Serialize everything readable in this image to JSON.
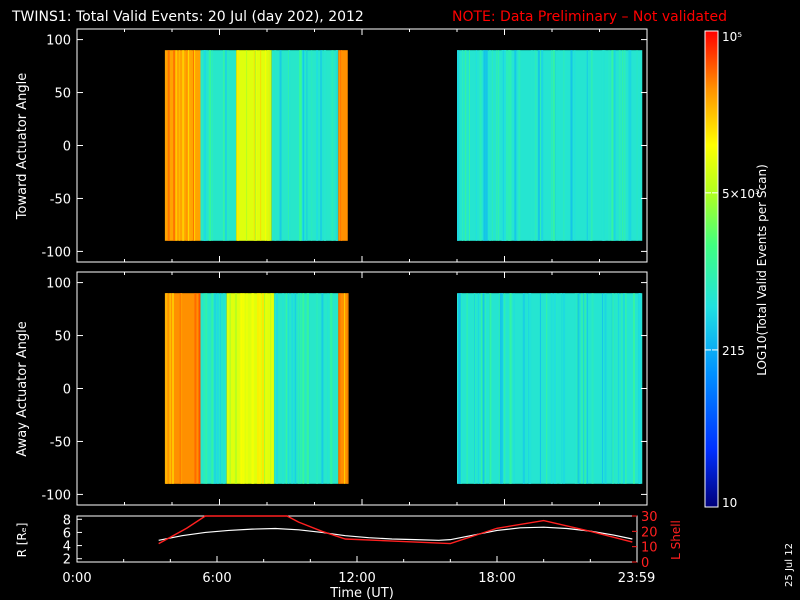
{
  "title": "TWINS1: Total Valid Events: 20 Jul (day 202), 2012",
  "note": "NOTE: Data Preliminary – Not validated",
  "date_stamp": "25 Jul 12",
  "colors": {
    "background": "#000000",
    "axes": "#ffffff",
    "note": "#ff0000",
    "l_shell": "#ff2020",
    "r_line": "#ffffff"
  },
  "chart_data": [
    {
      "type": "heatmap",
      "ylabel": "Toward Actuator Angle",
      "ylim": [
        -110,
        110
      ],
      "yticks": [
        -100,
        -50,
        0,
        50,
        100
      ],
      "xlim_hours": [
        0,
        24
      ],
      "data_windows_hours": [
        [
          3.7,
          11.4
        ],
        [
          16.0,
          23.8
        ]
      ],
      "angle_range": [
        -90,
        90
      ],
      "colorbar": "log10 counts: 10 (dark blue) to 1e5 (red)",
      "bands": [
        {
          "from": 3.7,
          "to": 5.2,
          "level": 0.86
        },
        {
          "from": 5.2,
          "to": 6.7,
          "level": 0.45
        },
        {
          "from": 6.7,
          "to": 8.2,
          "level": 0.72
        },
        {
          "from": 8.2,
          "to": 11.0,
          "level": 0.45
        },
        {
          "from": 11.0,
          "to": 11.4,
          "level": 0.88
        },
        {
          "from": 16.0,
          "to": 23.8,
          "level": 0.44
        }
      ]
    },
    {
      "type": "heatmap",
      "ylabel": "Away Actuator Angle",
      "ylim": [
        -110,
        110
      ],
      "yticks": [
        -100,
        -50,
        0,
        50,
        100
      ],
      "xlim_hours": [
        0,
        24
      ],
      "data_windows_hours": [
        [
          3.7,
          11.4
        ],
        [
          16.0,
          23.8
        ]
      ],
      "angle_range": [
        -90,
        90
      ],
      "bands": [
        {
          "from": 3.7,
          "to": 5.2,
          "level": 0.88
        },
        {
          "from": 5.2,
          "to": 6.3,
          "level": 0.45
        },
        {
          "from": 6.3,
          "to": 8.3,
          "level": 0.72
        },
        {
          "from": 8.3,
          "to": 11.0,
          "level": 0.45
        },
        {
          "from": 11.0,
          "to": 11.4,
          "level": 0.88
        },
        {
          "from": 16.0,
          "to": 23.8,
          "level": 0.44
        }
      ]
    },
    {
      "type": "line",
      "ylabel": "R [Rₑ]",
      "ylim_left": [
        1.5,
        8.5
      ],
      "yticks_left": [
        2,
        4,
        6,
        8
      ],
      "ylabel_right": "L Shell",
      "ylim_right": [
        0,
        30
      ],
      "yticks_right": [
        0,
        10,
        20,
        30
      ],
      "xlabel": "Time (UT)",
      "xticks": [
        "0:00",
        "6:00",
        "12:00",
        "18:00",
        "23:59"
      ],
      "xtick_hours": [
        0,
        6,
        12,
        18,
        23.98
      ],
      "series": [
        {
          "name": "R",
          "x_hours": [
            3.5,
            4.5,
            5.5,
            6.5,
            7.5,
            8.5,
            9.5,
            10.5,
            11.5,
            12.5,
            13.5,
            14.5,
            15.5,
            16.0,
            17.0,
            18.0,
            19.0,
            20.0,
            21.0,
            22.0,
            23.0,
            23.8
          ],
          "values": [
            4.8,
            5.5,
            6.0,
            6.3,
            6.5,
            6.6,
            6.4,
            6.0,
            5.5,
            5.2,
            5.0,
            4.9,
            4.8,
            4.9,
            5.6,
            6.3,
            6.7,
            6.8,
            6.6,
            6.2,
            5.6,
            5.0
          ]
        },
        {
          "name": "L Shell",
          "x_hours": [
            3.5,
            4.7,
            5.5,
            9.0,
            9.5,
            10.5,
            11.5,
            16.0,
            18.0,
            20.0,
            22.0,
            23.8
          ],
          "values": [
            12,
            22,
            30,
            30,
            26,
            20,
            15,
            12,
            22,
            27,
            20,
            13
          ]
        }
      ]
    }
  ],
  "colorbar": {
    "label": "LOG10(Total Valid Events per Scan)",
    "tick_labels": [
      "10⁵",
      "5×10³",
      "215",
      "10"
    ],
    "tick_fractions": [
      1.0,
      0.66,
      0.33,
      0.0
    ]
  }
}
